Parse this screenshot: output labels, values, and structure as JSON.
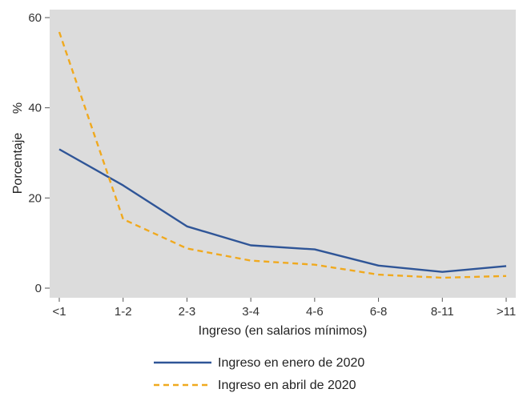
{
  "chart_data": {
    "type": "line",
    "categories": [
      "<1",
      "1-2",
      "2-3",
      "3-4",
      "4-6",
      "6-8",
      "8-11",
      ">11"
    ],
    "xlabel": "Ingreso (en salarios mínimos)",
    "ylabel": "Porcentaje",
    "ylabel_unit": "%",
    "ylim": [
      0,
      60
    ],
    "yticks": [
      0,
      20,
      40,
      60
    ],
    "grid": false,
    "background": "#dcdcdc",
    "legend_position": "bottom",
    "series": [
      {
        "name": "Ingreso en enero de 2020",
        "color": "#2f5597",
        "dash": "solid",
        "values": [
          30.8,
          22.8,
          13.7,
          9.5,
          8.6,
          5.0,
          3.6,
          4.9
        ]
      },
      {
        "name": "Ingreso en abril de 2020",
        "color": "#f0a91e",
        "dash": "dashed",
        "values": [
          56.8,
          15.3,
          8.8,
          6.1,
          5.2,
          3.0,
          2.3,
          2.7
        ]
      }
    ]
  }
}
